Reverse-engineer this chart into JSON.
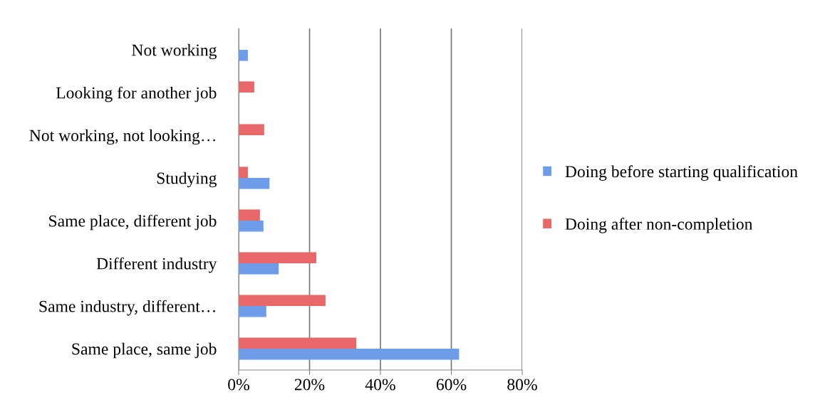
{
  "chart_data": {
    "type": "bar",
    "orientation": "horizontal",
    "categories": [
      "Not working",
      "Looking for another job",
      "Not working, not looking…",
      "Studying",
      "Same place, different job",
      "Different industry",
      "Same industry, different…",
      "Same place, same job"
    ],
    "series": [
      {
        "name": "Doing after non-completion",
        "color": "#e8686a",
        "values": [
          null,
          4.4,
          7.2,
          2.6,
          6.0,
          21.9,
          24.5,
          33.2
        ]
      },
      {
        "name": "Doing before starting qualification",
        "color": "#6f9ce8",
        "values": [
          2.6,
          null,
          null,
          8.7,
          7.0,
          11.3,
          7.8,
          62.2
        ]
      }
    ],
    "xlim": [
      0,
      80
    ],
    "xticks": [
      {
        "value": 0,
        "label": "0%"
      },
      {
        "value": 20,
        "label": "20%"
      },
      {
        "value": 40,
        "label": "40%"
      },
      {
        "value": 60,
        "label": "60%"
      },
      {
        "value": 80,
        "label": "80%"
      }
    ],
    "grid": "x",
    "legend": "right"
  }
}
